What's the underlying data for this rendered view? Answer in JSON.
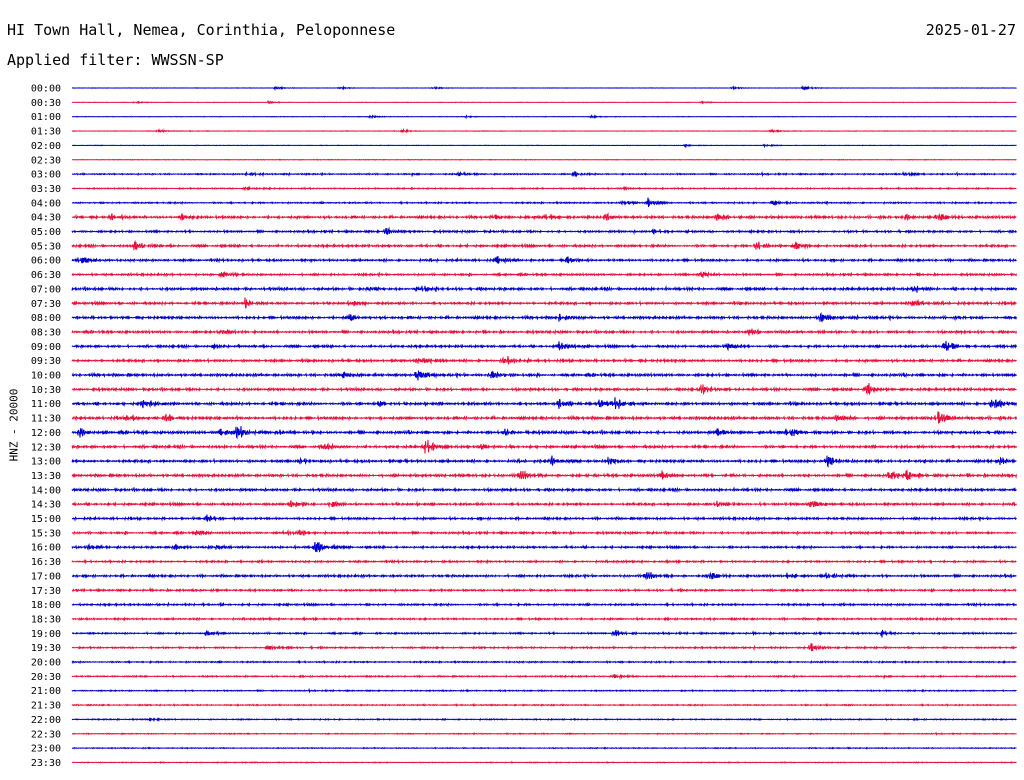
{
  "header": {
    "station": "HI Town Hall, Nemea, Corinthia, Peloponnese",
    "date": "2025-01-27",
    "filter": "Applied filter: WWSSN-SP"
  },
  "colors": {
    "trace_even": "#0000cc",
    "trace_odd": "#e8103a",
    "text": "#000000"
  },
  "chart_data": {
    "type": "helicorder",
    "channel_label": "HNZ - 20000",
    "row_interval_minutes": 30,
    "y_tick_labels": [
      "00:00",
      "00:30",
      "01:00",
      "01:30",
      "02:00",
      "02:30",
      "03:00",
      "03:30",
      "04:00",
      "04:30",
      "05:00",
      "05:30",
      "06:00",
      "06:30",
      "07:00",
      "07:30",
      "08:00",
      "08:30",
      "09:00",
      "09:30",
      "10:00",
      "10:30",
      "11:00",
      "11:30",
      "12:00",
      "12:30",
      "13:00",
      "13:30",
      "14:00",
      "14:30",
      "15:00",
      "15:30",
      "16:00",
      "16:30",
      "17:00",
      "17:30",
      "18:00",
      "18:30",
      "19:00",
      "19:30",
      "20:00",
      "20:30",
      "21:00",
      "21:30",
      "22:00",
      "22:30",
      "23:00",
      "23:30"
    ],
    "noise_level": [
      0.15,
      0.15,
      0.18,
      0.18,
      0.18,
      0.2,
      0.5,
      0.45,
      0.55,
      0.9,
      0.75,
      0.85,
      0.8,
      0.75,
      0.95,
      0.9,
      0.95,
      0.85,
      0.85,
      0.9,
      0.95,
      0.9,
      1.0,
      1.0,
      1.0,
      0.95,
      0.95,
      0.95,
      0.9,
      0.85,
      0.8,
      0.75,
      0.75,
      0.7,
      0.8,
      0.7,
      0.7,
      0.65,
      0.6,
      0.6,
      0.55,
      0.5,
      0.45,
      0.45,
      0.45,
      0.35,
      0.35,
      0.3
    ],
    "events": [
      {
        "row": 0,
        "min": 13,
        "amp": 0.4
      },
      {
        "row": 0,
        "min": 17,
        "amp": 0.35
      },
      {
        "row": 0,
        "min": 23,
        "amp": 0.25
      },
      {
        "row": 0,
        "min": 42,
        "amp": 0.25
      },
      {
        "row": 0,
        "min": 46.5,
        "amp": 0.55
      },
      {
        "row": 1,
        "min": 4,
        "amp": 0.25
      },
      {
        "row": 1,
        "min": 12.5,
        "amp": 0.35
      },
      {
        "row": 1,
        "min": 40,
        "amp": 0.25
      },
      {
        "row": 2,
        "min": 19,
        "amp": 0.35
      },
      {
        "row": 2,
        "min": 25,
        "amp": 0.25
      },
      {
        "row": 2,
        "min": 33,
        "amp": 0.3
      },
      {
        "row": 3,
        "min": 5.5,
        "amp": 0.45
      },
      {
        "row": 3,
        "min": 21,
        "amp": 0.45
      },
      {
        "row": 3,
        "min": 44.5,
        "amp": 0.35
      },
      {
        "row": 4,
        "min": 39,
        "amp": 0.3
      },
      {
        "row": 4,
        "min": 44,
        "amp": 0.3
      },
      {
        "row": 6,
        "min": 11,
        "amp": 0.5
      },
      {
        "row": 6,
        "min": 24.5,
        "amp": 0.6
      },
      {
        "row": 6,
        "min": 32,
        "amp": 0.7
      },
      {
        "row": 6,
        "min": 53,
        "amp": 0.4
      },
      {
        "row": 7,
        "min": 11,
        "amp": 0.6
      },
      {
        "row": 7,
        "min": 35,
        "amp": 0.3
      },
      {
        "row": 8,
        "min": 35,
        "amp": 0.5
      },
      {
        "row": 8,
        "min": 36.5,
        "amp": 1.2
      },
      {
        "row": 8,
        "min": 44.5,
        "amp": 0.7
      },
      {
        "row": 9,
        "min": 2.5,
        "amp": 0.8
      },
      {
        "row": 9,
        "min": 7,
        "amp": 1.1
      },
      {
        "row": 9,
        "min": 27,
        "amp": 0.5
      },
      {
        "row": 9,
        "min": 30,
        "amp": 0.6
      },
      {
        "row": 9,
        "min": 34,
        "amp": 0.6
      },
      {
        "row": 9,
        "min": 41,
        "amp": 0.9
      },
      {
        "row": 9,
        "min": 53,
        "amp": 0.7
      },
      {
        "row": 9,
        "min": 55,
        "amp": 1.1
      },
      {
        "row": 10,
        "min": 20,
        "amp": 1.3
      },
      {
        "row": 10,
        "min": 37,
        "amp": 0.9
      },
      {
        "row": 11,
        "min": 4,
        "amp": 1.2
      },
      {
        "row": 11,
        "min": 43.5,
        "amp": 1.2
      },
      {
        "row": 11,
        "min": 46,
        "amp": 0.9
      },
      {
        "row": 12,
        "min": 0.5,
        "amp": 1.3
      },
      {
        "row": 12,
        "min": 27,
        "amp": 1.2
      },
      {
        "row": 12,
        "min": 31.5,
        "amp": 1.0
      },
      {
        "row": 13,
        "min": 9.5,
        "amp": 1.1
      },
      {
        "row": 13,
        "min": 40,
        "amp": 0.8
      },
      {
        "row": 14,
        "min": 19,
        "amp": 0.8
      },
      {
        "row": 14,
        "min": 22,
        "amp": 0.9
      },
      {
        "row": 14,
        "min": 53.5,
        "amp": 0.9
      },
      {
        "row": 15,
        "min": 11,
        "amp": 1.2
      },
      {
        "row": 15,
        "min": 18,
        "amp": 0.7
      },
      {
        "row": 15,
        "min": 53.5,
        "amp": 0.9
      },
      {
        "row": 16,
        "min": 17.5,
        "amp": 0.9
      },
      {
        "row": 16,
        "min": 31,
        "amp": 0.9
      },
      {
        "row": 16,
        "min": 47.5,
        "amp": 1.4
      },
      {
        "row": 17,
        "min": 9.5,
        "amp": 0.6
      },
      {
        "row": 17,
        "min": 43,
        "amp": 0.9
      },
      {
        "row": 18,
        "min": 9,
        "amp": 0.6
      },
      {
        "row": 18,
        "min": 31,
        "amp": 1.2
      },
      {
        "row": 18,
        "min": 41.5,
        "amp": 1.1
      },
      {
        "row": 18,
        "min": 55.5,
        "amp": 1.5
      },
      {
        "row": 19,
        "min": 22,
        "amp": 1.3
      },
      {
        "row": 19,
        "min": 27.5,
        "amp": 1.2
      },
      {
        "row": 20,
        "min": 17,
        "amp": 0.9
      },
      {
        "row": 20,
        "min": 22,
        "amp": 1.2
      },
      {
        "row": 20,
        "min": 26.5,
        "amp": 1.5
      },
      {
        "row": 21,
        "min": 40,
        "amp": 1.3
      },
      {
        "row": 21,
        "min": 50.5,
        "amp": 1.6
      },
      {
        "row": 22,
        "min": 4.5,
        "amp": 1.0
      },
      {
        "row": 22,
        "min": 19.5,
        "amp": 0.7
      },
      {
        "row": 22,
        "min": 31,
        "amp": 0.9
      },
      {
        "row": 22,
        "min": 33.5,
        "amp": 1.2
      },
      {
        "row": 22,
        "min": 34.5,
        "amp": 1.4
      },
      {
        "row": 22,
        "min": 58.5,
        "amp": 1.5
      },
      {
        "row": 23,
        "min": 3.5,
        "amp": 1.4
      },
      {
        "row": 23,
        "min": 6,
        "amp": 1.1
      },
      {
        "row": 23,
        "min": 48.5,
        "amp": 1.3
      },
      {
        "row": 23,
        "min": 55,
        "amp": 1.6
      },
      {
        "row": 24,
        "min": 0.5,
        "amp": 1.1
      },
      {
        "row": 24,
        "min": 9.5,
        "amp": 0.8
      },
      {
        "row": 24,
        "min": 10.5,
        "amp": 1.7
      },
      {
        "row": 24,
        "min": 13,
        "amp": 0.8
      },
      {
        "row": 24,
        "min": 27.5,
        "amp": 0.8
      },
      {
        "row": 24,
        "min": 41,
        "amp": 1.1
      },
      {
        "row": 24,
        "min": 45.5,
        "amp": 1.1
      },
      {
        "row": 25,
        "min": 16,
        "amp": 0.8
      },
      {
        "row": 25,
        "min": 22.5,
        "amp": 2.2
      },
      {
        "row": 25,
        "min": 26,
        "amp": 0.7
      },
      {
        "row": 26,
        "min": 14.5,
        "amp": 0.7
      },
      {
        "row": 26,
        "min": 30.5,
        "amp": 1.3
      },
      {
        "row": 26,
        "min": 34,
        "amp": 1.1
      },
      {
        "row": 26,
        "min": 48,
        "amp": 1.5
      },
      {
        "row": 26,
        "min": 59,
        "amp": 0.9
      },
      {
        "row": 27,
        "min": 28.5,
        "amp": 1.0
      },
      {
        "row": 27,
        "min": 37.5,
        "amp": 1.2
      },
      {
        "row": 27,
        "min": 52,
        "amp": 1.1
      },
      {
        "row": 27,
        "min": 53,
        "amp": 1.1
      },
      {
        "row": 29,
        "min": 14,
        "amp": 1.1
      },
      {
        "row": 29,
        "min": 16.5,
        "amp": 0.8
      },
      {
        "row": 29,
        "min": 41,
        "amp": 0.9
      },
      {
        "row": 29,
        "min": 47,
        "amp": 0.8
      },
      {
        "row": 30,
        "min": 8.5,
        "amp": 1.0
      },
      {
        "row": 31,
        "min": 8,
        "amp": 0.7
      },
      {
        "row": 31,
        "min": 13.5,
        "amp": 1.1
      },
      {
        "row": 31,
        "min": 14.5,
        "amp": 0.9
      },
      {
        "row": 32,
        "min": 1,
        "amp": 0.6
      },
      {
        "row": 32,
        "min": 6.5,
        "amp": 0.9
      },
      {
        "row": 32,
        "min": 9,
        "amp": 0.6
      },
      {
        "row": 32,
        "min": 15.5,
        "amp": 1.6
      },
      {
        "row": 34,
        "min": 36.5,
        "amp": 0.8
      },
      {
        "row": 34,
        "min": 40.5,
        "amp": 1.0
      },
      {
        "row": 34,
        "min": 45.5,
        "amp": 0.9
      },
      {
        "row": 34,
        "min": 48,
        "amp": 0.9
      },
      {
        "row": 38,
        "min": 8.5,
        "amp": 0.4
      },
      {
        "row": 38,
        "min": 34.5,
        "amp": 0.8
      },
      {
        "row": 38,
        "min": 51.5,
        "amp": 0.9
      },
      {
        "row": 39,
        "min": 12.5,
        "amp": 0.7
      },
      {
        "row": 39,
        "min": 47,
        "amp": 1.0
      },
      {
        "row": 41,
        "min": 34.5,
        "amp": 0.6
      },
      {
        "row": 44,
        "min": 5,
        "amp": 0.3
      }
    ]
  }
}
